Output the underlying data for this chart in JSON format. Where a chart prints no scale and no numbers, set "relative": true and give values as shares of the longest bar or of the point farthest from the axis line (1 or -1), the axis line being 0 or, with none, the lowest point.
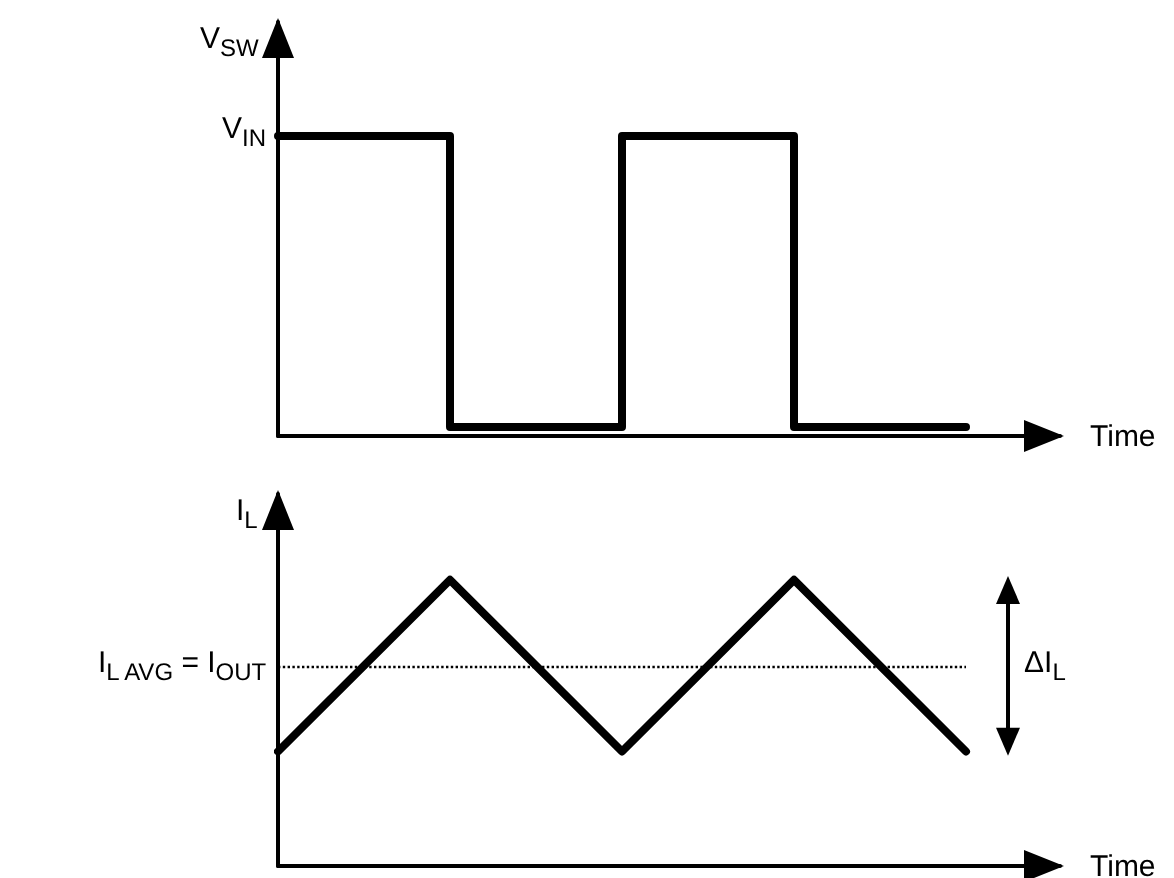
{
  "chart_data": [
    {
      "type": "step",
      "relative": true,
      "ylabel": "V$_{SW}$",
      "xlabel": "Time",
      "categories": [
        null,
        null,
        null,
        null,
        null
      ],
      "series": [
        {
          "color": "#000000",
          "values": [
            1,
            0.03,
            1,
            0.03,
            0.03
          ]
        }
      ],
      "annotations": [
        "V$_{IN}$"
      ],
      "grid": false,
      "marker": "none",
      "line_style": "solid"
    },
    {
      "type": "line",
      "relative": true,
      "ylabel": "I$_{L}$",
      "xlabel": "Time",
      "categories": [
        null,
        null,
        null,
        null,
        null
      ],
      "series": [
        {
          "color": "#000000",
          "values": [
            0.4,
            1,
            0.4,
            1,
            0.4
          ]
        }
      ],
      "ref_lines": [
        {
          "axis": "y",
          "value": 0.7,
          "label": "I$_{L AVG}$ = I$_{OUT}$",
          "color": "#000000",
          "line_style": "dotted"
        }
      ],
      "annotations": [
        "ΔI$_{L}$"
      ],
      "grid": false,
      "marker": "none",
      "line_style": "solid"
    }
  ]
}
